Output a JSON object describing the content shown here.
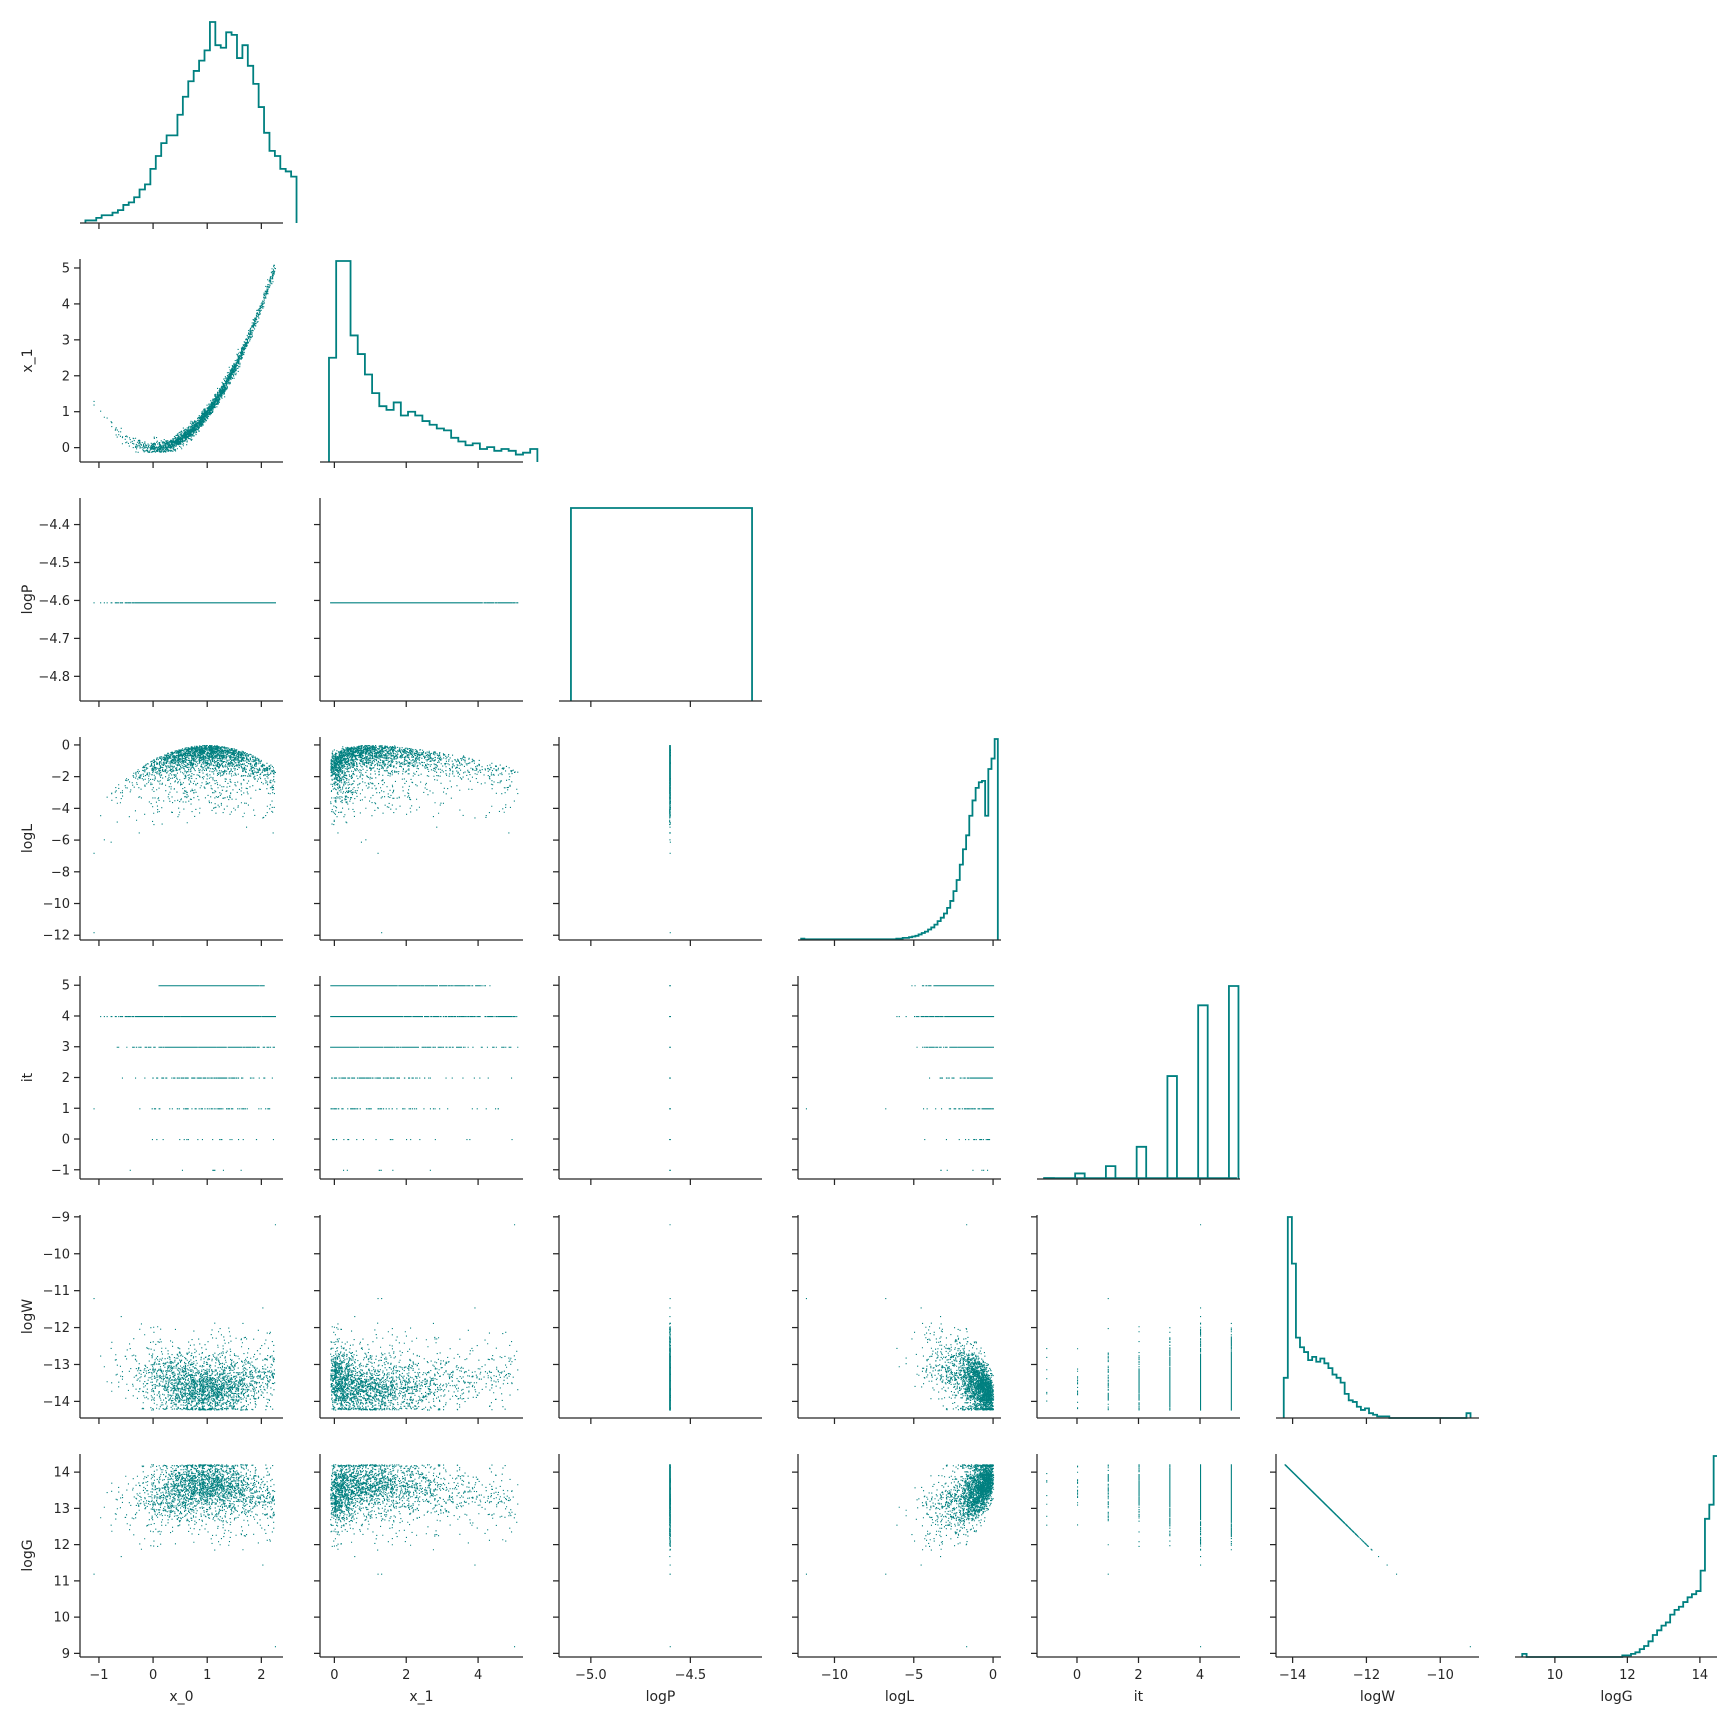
{
  "chart_data": {
    "type": "corner",
    "color": "#008080",
    "variables": [
      "x_0",
      "x_1",
      "logP",
      "logL",
      "it",
      "logW",
      "logG"
    ],
    "axis_labels": {
      "x": [
        "x_0",
        "x_1",
        "logP",
        "logL",
        "it",
        "logW",
        "logG"
      ],
      "y": [
        "",
        "x_1",
        "logP",
        "logL",
        "it",
        "logW",
        "logG"
      ]
    },
    "ranges": {
      "x_0": [
        -1.35,
        2.4
      ],
      "x_1": [
        -0.4,
        5.25
      ],
      "logP": [
        -5.16,
        -4.14
      ],
      "logL": [
        -12.3,
        0.5
      ],
      "it": [
        -1.3,
        5.3
      ],
      "logW": [
        -14.45,
        -8.95
      ],
      "logG": [
        8.9,
        14.5
      ],
      "logP_y": [
        -4.865,
        -4.33
      ]
    },
    "ticks": {
      "x_0": [
        -1,
        0,
        1,
        2
      ],
      "x_1": [
        0,
        2,
        4
      ],
      "logP": [
        -5.0,
        -4.5
      ],
      "logL": [
        -10,
        -5,
        0
      ],
      "it": [
        0,
        2,
        4
      ],
      "logW": [
        -14,
        -12,
        -10
      ],
      "logG": [
        10,
        12,
        14
      ]
    },
    "y_ticks": {
      "x_1": [
        0,
        1,
        2,
        3,
        4,
        5
      ],
      "logP": [
        -4.8,
        -4.7,
        -4.6,
        -4.5,
        -4.4
      ],
      "logL": [
        -12,
        -10,
        -8,
        -6,
        -4,
        -2,
        0
      ],
      "it": [
        -1,
        0,
        1,
        2,
        3,
        4,
        5
      ],
      "logW": [
        -14,
        -13,
        -12,
        -11,
        -10,
        -9
      ],
      "logG": [
        9,
        10,
        11,
        12,
        13,
        14
      ]
    },
    "tick_labels": {
      "x_0": [
        "−1",
        "0",
        "1",
        "2"
      ],
      "x_1": [
        "0",
        "2",
        "4"
      ],
      "logP": [
        "−5.0",
        "−4.5"
      ],
      "logL": [
        "−10",
        "−5",
        "0"
      ],
      "it": [
        "0",
        "2",
        "4"
      ],
      "logW": [
        "−14",
        "−12",
        "−10"
      ],
      "logG": [
        "10",
        "12",
        "14"
      ]
    },
    "y_tick_labels": {
      "x_1": [
        "0",
        "1",
        "2",
        "3",
        "4",
        "5"
      ],
      "logP": [
        "−4.8",
        "−4.7",
        "−4.6",
        "−4.5",
        "−4.4"
      ],
      "logL": [
        "−12",
        "−10",
        "−8",
        "−6",
        "−4",
        "−2",
        "0"
      ],
      "it": [
        "−1",
        "0",
        "1",
        "2",
        "3",
        "4",
        "5"
      ],
      "logW": [
        "−14",
        "−13",
        "−12",
        "−11",
        "−10",
        "−9"
      ],
      "logG": [
        "9",
        "10",
        "11",
        "12",
        "13",
        "14"
      ]
    },
    "constant_logP": -4.605,
    "histograms": {
      "x_0": {
        "edges_start": -1.25,
        "bin_width": 0.1,
        "counts": [
          1,
          1,
          2,
          3,
          3,
          4,
          5,
          7,
          8,
          10,
          13,
          15,
          21,
          26,
          31,
          34,
          34,
          42,
          49,
          55,
          59,
          63,
          67,
          78,
          69,
          68,
          74,
          73,
          64,
          69,
          61,
          54,
          45,
          35,
          28,
          26,
          21,
          20,
          18
        ]
      },
      "x_1": {
        "edges_start": -0.15,
        "bin_width": 0.2,
        "counts": [
          56,
          108,
          108,
          68,
          58,
          47,
          37,
          30,
          28,
          32,
          25,
          27,
          25,
          22,
          20,
          18,
          17,
          13,
          11,
          9,
          10,
          7,
          8,
          6,
          7,
          6,
          4,
          5,
          7
        ]
      },
      "logP": {
        "constant": -4.605,
        "x_span": [
          -5.1,
          -4.19
        ],
        "height": 1
      },
      "logL": {
        "edges_start": -12.1,
        "bin_width": 0.2,
        "counts": [
          2,
          1,
          1,
          1,
          1,
          1,
          1,
          1,
          1,
          1,
          1,
          1,
          1,
          1,
          1,
          1,
          1,
          1,
          1,
          1,
          1,
          1,
          1,
          1,
          1,
          1,
          1,
          1,
          1,
          1,
          2,
          2,
          3,
          3,
          4,
          5,
          6,
          8,
          10,
          12,
          15,
          18,
          22,
          27,
          32,
          38,
          46,
          56,
          70,
          86,
          108,
          130,
          150,
          178,
          200,
          218,
          226,
          228,
          178,
          245,
          260,
          288
        ]
      },
      "it": {
        "bars": [
          {
            "x": -1,
            "count": 4
          },
          {
            "x": 0,
            "count": 26
          },
          {
            "x": 1,
            "count": 60
          },
          {
            "x": 2,
            "count": 150
          },
          {
            "x": 3,
            "count": 480
          },
          {
            "x": 4,
            "count": 810
          },
          {
            "x": 5,
            "count": 900
          }
        ],
        "bar_width": 0.25
      },
      "logW": {
        "edges_start": -14.24,
        "bin_width": 0.11,
        "counts": [
          25,
          125,
          96,
          50,
          44,
          41,
          36,
          38,
          35,
          37,
          34,
          31,
          27,
          25,
          22,
          15,
          11,
          10,
          7,
          5,
          6,
          3,
          2,
          1,
          1,
          1,
          0,
          0,
          0,
          0,
          0,
          0,
          0,
          0,
          0,
          0,
          0,
          0,
          0,
          0,
          0,
          0,
          0,
          0,
          0,
          3
        ]
      },
      "logG": {
        "edges_start": 9.1,
        "bin_width": 0.12,
        "counts": [
          2,
          0,
          0,
          0,
          0,
          0,
          0,
          0,
          0,
          0,
          0,
          0,
          0,
          0,
          0,
          0,
          0,
          0,
          0,
          0,
          0,
          0,
          0,
          1,
          1,
          2,
          3,
          5,
          7,
          10,
          14,
          17,
          20,
          22,
          27,
          30,
          32,
          35,
          38,
          40,
          42,
          55,
          88,
          97,
          128,
          100
        ]
      }
    },
    "density_descriptions": {
      "x_0_x_1": "parabola band y≈x^2 (Rosenbrock), x from -1.2 to 2.25",
      "x_0_logL": "dome peaked near x_0=1, logL near 0, tail to -12",
      "it_levels": [
        -1,
        0,
        1,
        2,
        3,
        4,
        5
      ],
      "logW_logG": "logG = -logW (line from (-14.2, 14.2) to (-11.2, 11.2)) plus outlier (-9.2, 9.2)"
    }
  }
}
